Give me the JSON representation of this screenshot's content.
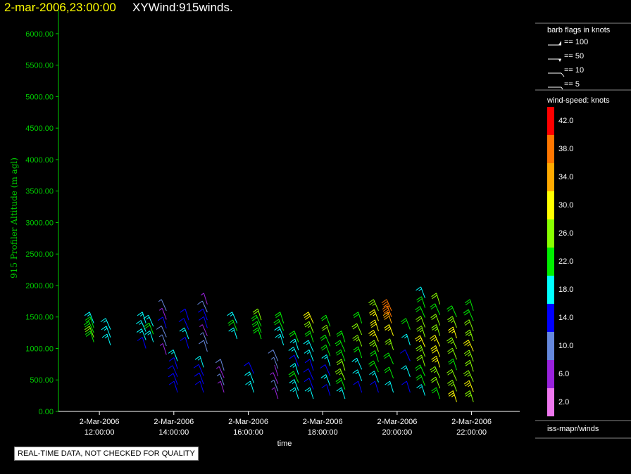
{
  "header": {
    "time": "2-mar-2006,23:00:00",
    "product": "XYWind:915winds."
  },
  "footer": {
    "notice": "REAL-TIME DATA, NOT CHECKED FOR QUALITY"
  },
  "colors": {
    "axis_text": "#00cc00",
    "title_time": "#ffff00",
    "background": "#000000"
  },
  "legend": {
    "barb_title": "barb flags in knots",
    "barbs": [
      "== 100",
      "== 50",
      "== 10",
      "== 5"
    ],
    "speed_title": "wind-speed: knots",
    "scale": [
      {
        "label": "42.0",
        "color": "#ff0000"
      },
      {
        "label": "38.0",
        "color": "#ff7700"
      },
      {
        "label": "34.0",
        "color": "#ffaa00"
      },
      {
        "label": "30.0",
        "color": "#ffff00"
      },
      {
        "label": "26.0",
        "color": "#88ff00"
      },
      {
        "label": "22.0",
        "color": "#00ee00"
      },
      {
        "label": "18.0",
        "color": "#00ffff"
      },
      {
        "label": "14.0",
        "color": "#0000ff"
      },
      {
        "label": "10.0",
        "color": "#6688dd"
      },
      {
        "label": "6.0",
        "color": "#9922dd"
      },
      {
        "label": "2.0",
        "color": "#ee77ee"
      }
    ],
    "source": "iss-mapr/winds"
  },
  "chart_data": {
    "type": "scatter",
    "ylabel": "915 Profiler Altitude (m agl)",
    "xlabel": "time",
    "ylim": [
      0,
      6200
    ],
    "yticks": [
      "0.00",
      "500.00",
      "1000.00",
      "1500.00",
      "2000.00",
      "2500.00",
      "3000.00",
      "3500.00",
      "4000.00",
      "4500.00",
      "5000.00",
      "5500.00",
      "6000.00"
    ],
    "xticks": [
      {
        "date": "2-Mar-2006",
        "time": "12:00:00"
      },
      {
        "date": "2-Mar-2006",
        "time": "14:00:00"
      },
      {
        "date": "2-Mar-2006",
        "time": "16:00:00"
      },
      {
        "date": "2-Mar-2006",
        "time": "18:00:00"
      },
      {
        "date": "2-Mar-2006",
        "time": "20:00:00"
      },
      {
        "date": "2-Mar-2006",
        "time": "22:00:00"
      }
    ],
    "xlim_hours": [
      10.9,
      23.2
    ],
    "profiles": [
      {
        "t": 11.85,
        "bottom": 1100,
        "top": 1400,
        "speeds": [
          22,
          24,
          22,
          20,
          18
        ]
      },
      {
        "t": 12.3,
        "bottom": 1050,
        "top": 1300,
        "speeds": [
          18,
          18,
          16
        ]
      },
      {
        "t": 13.25,
        "bottom": 1000,
        "top": 1400,
        "speeds": [
          14,
          16,
          18,
          18
        ]
      },
      {
        "t": 13.45,
        "bottom": 1100,
        "top": 1350,
        "speeds": [
          18,
          20,
          18
        ]
      },
      {
        "t": 13.8,
        "bottom": 900,
        "top": 1600,
        "speeds": [
          6,
          8,
          10,
          12,
          6,
          8
        ]
      },
      {
        "t": 14.1,
        "bottom": 300,
        "top": 800,
        "speeds": [
          14,
          14,
          12,
          14,
          16
        ]
      },
      {
        "t": 14.4,
        "bottom": 1000,
        "top": 1450,
        "speeds": [
          14,
          16,
          14,
          12
        ]
      },
      {
        "t": 14.8,
        "bottom": 300,
        "top": 700,
        "speeds": [
          14,
          12,
          14,
          16
        ]
      },
      {
        "t": 14.9,
        "bottom": 950,
        "top": 1700,
        "speeds": [
          10,
          8,
          6,
          12,
          14,
          10,
          6
        ]
      },
      {
        "t": 15.35,
        "bottom": 300,
        "top": 650,
        "speeds": [
          6,
          8,
          6,
          10
        ]
      },
      {
        "t": 15.7,
        "bottom": 1150,
        "top": 1400,
        "speeds": [
          18,
          20,
          18
        ]
      },
      {
        "t": 16.15,
        "bottom": 300,
        "top": 600,
        "speeds": [
          16,
          18,
          14
        ]
      },
      {
        "t": 16.35,
        "bottom": 1150,
        "top": 1450,
        "speeds": [
          22,
          20,
          22,
          24
        ]
      },
      {
        "t": 16.8,
        "bottom": 200,
        "top": 800,
        "speeds": [
          6,
          8,
          6,
          4,
          8,
          10
        ]
      },
      {
        "t": 16.95,
        "bottom": 1050,
        "top": 1400,
        "speeds": [
          16,
          18,
          20,
          22
        ]
      },
      {
        "t": 17.35,
        "bottom": 200,
        "top": 1100,
        "speeds": [
          18,
          18,
          20,
          18,
          14,
          16,
          18,
          22
        ]
      },
      {
        "t": 17.75,
        "bottom": 200,
        "top": 1400,
        "speeds": [
          16,
          14,
          12,
          14,
          16,
          18,
          22,
          26,
          30
        ]
      },
      {
        "t": 18.2,
        "bottom": 250,
        "top": 1350,
        "speeds": [
          14,
          16,
          14,
          18,
          20,
          22,
          24,
          22
        ]
      },
      {
        "t": 18.6,
        "bottom": 200,
        "top": 1100,
        "speeds": [
          18,
          22,
          26,
          24,
          22,
          20,
          22
        ]
      },
      {
        "t": 19.05,
        "bottom": 300,
        "top": 1400,
        "speeds": [
          14,
          16,
          18,
          22,
          26,
          24,
          22
        ]
      },
      {
        "t": 19.5,
        "bottom": 300,
        "top": 1600,
        "speeds": [
          14,
          16,
          20,
          22,
          26,
          28,
          30,
          28,
          26
        ]
      },
      {
        "t": 19.85,
        "bottom": 1400,
        "top": 1600,
        "speeds": [
          34,
          36,
          38
        ]
      },
      {
        "t": 19.9,
        "bottom": 300,
        "top": 1200,
        "speeds": [
          18,
          20,
          22,
          26,
          28
        ]
      },
      {
        "t": 20.35,
        "bottom": 300,
        "top": 1300,
        "speeds": [
          14,
          16,
          14,
          18,
          20
        ]
      },
      {
        "t": 20.75,
        "bottom": 250,
        "top": 1800,
        "speeds": [
          18,
          20,
          22,
          24,
          26,
          28,
          26,
          24,
          22,
          20,
          18
        ]
      },
      {
        "t": 21.15,
        "bottom": 200,
        "top": 1700,
        "speeds": [
          22,
          24,
          26,
          28,
          30,
          28,
          26,
          24,
          22,
          24
        ]
      },
      {
        "t": 21.6,
        "bottom": 150,
        "top": 1500,
        "speeds": [
          28,
          26,
          24,
          22,
          24,
          26,
          28,
          26,
          22
        ]
      },
      {
        "t": 22.05,
        "bottom": 150,
        "top": 1600,
        "speeds": [
          26,
          28,
          26,
          24,
          26,
          28,
          26,
          24,
          22,
          20
        ]
      }
    ]
  }
}
